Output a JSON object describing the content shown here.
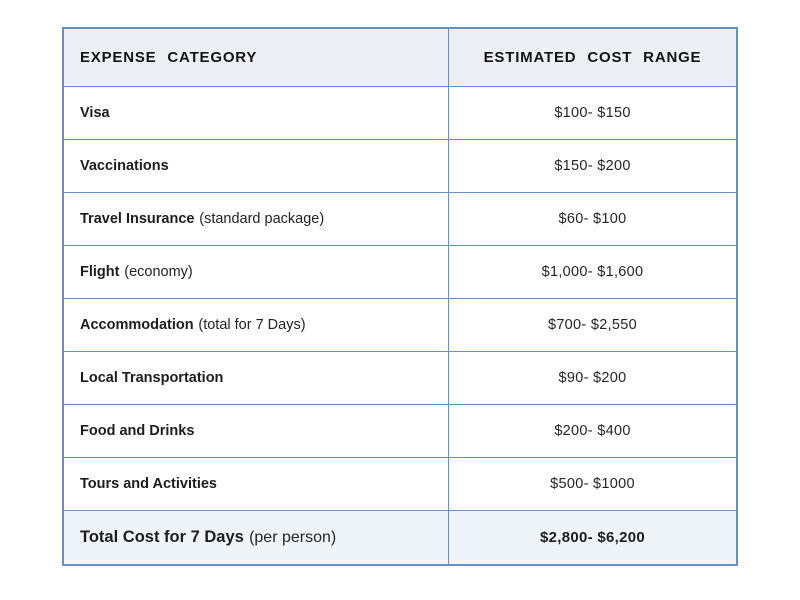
{
  "style": {
    "border_color": "#6690c4",
    "header_bg": "#eceff4",
    "total_bg": "#eff4f9",
    "text_color": "#1d1d1d",
    "page_bg": "#ffffff"
  },
  "chart_data": {
    "type": "table",
    "columns": [
      "EXPENSE CATEGORY",
      "ESTIMATED COST RANGE"
    ],
    "rows": [
      {
        "category": "Visa",
        "note": "",
        "cost": "$100- $150"
      },
      {
        "category": "Vaccinations",
        "note": "",
        "cost": "$150- $200"
      },
      {
        "category": "Travel Insurance",
        "note": "(standard package)",
        "cost": "$60- $100"
      },
      {
        "category": "Flight",
        "note": "(economy)",
        "cost": "$1,000- $1,600"
      },
      {
        "category": "Accommodation",
        "note": "(total for 7 Days)",
        "cost": "$700- $2,550"
      },
      {
        "category": "Local Transportation",
        "note": "",
        "cost": "$90- $200"
      },
      {
        "category": "Food and Drinks",
        "note": "",
        "cost": "$200- $400"
      },
      {
        "category": "Tours and Activities",
        "note": "",
        "cost": "$500- $1000"
      }
    ],
    "total_row": {
      "category": "Total Cost for 7 Days",
      "note": "(per person)",
      "cost": "$2,800- $6,200"
    }
  }
}
